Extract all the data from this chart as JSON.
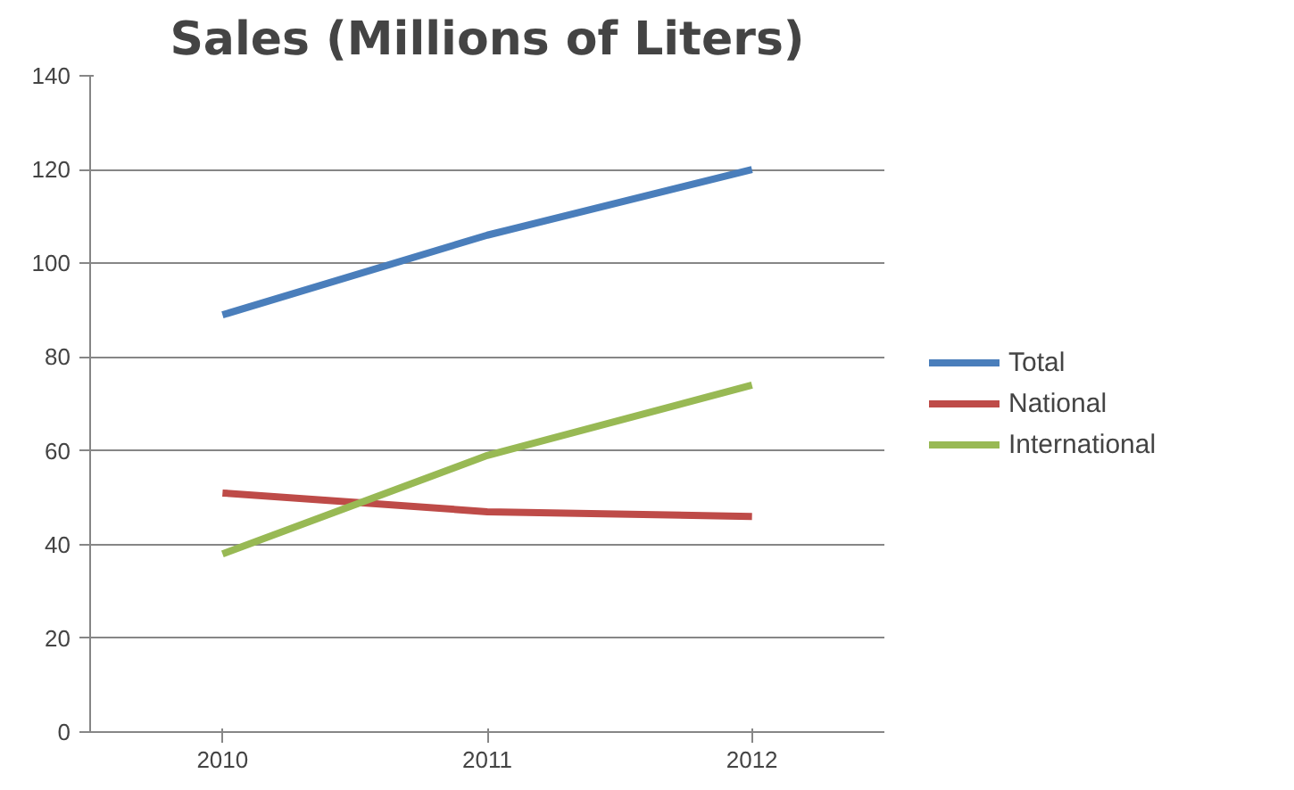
{
  "chart_data": {
    "type": "line",
    "title": "Sales (Millions of Liters)",
    "categories": [
      "2010",
      "2011",
      "2012"
    ],
    "series": [
      {
        "name": "Total",
        "color": "#4a7ebb",
        "values": [
          89,
          106,
          120
        ]
      },
      {
        "name": "National",
        "color": "#be4b48",
        "values": [
          51,
          47,
          46
        ]
      },
      {
        "name": "International",
        "color": "#98b954",
        "values": [
          38,
          59,
          74
        ]
      }
    ],
    "ylim": [
      0,
      140
    ],
    "yticks": [
      0,
      20,
      40,
      60,
      80,
      100,
      120,
      140
    ],
    "grid": "y",
    "legend": "right",
    "marker": "none",
    "line_style": "solid"
  }
}
